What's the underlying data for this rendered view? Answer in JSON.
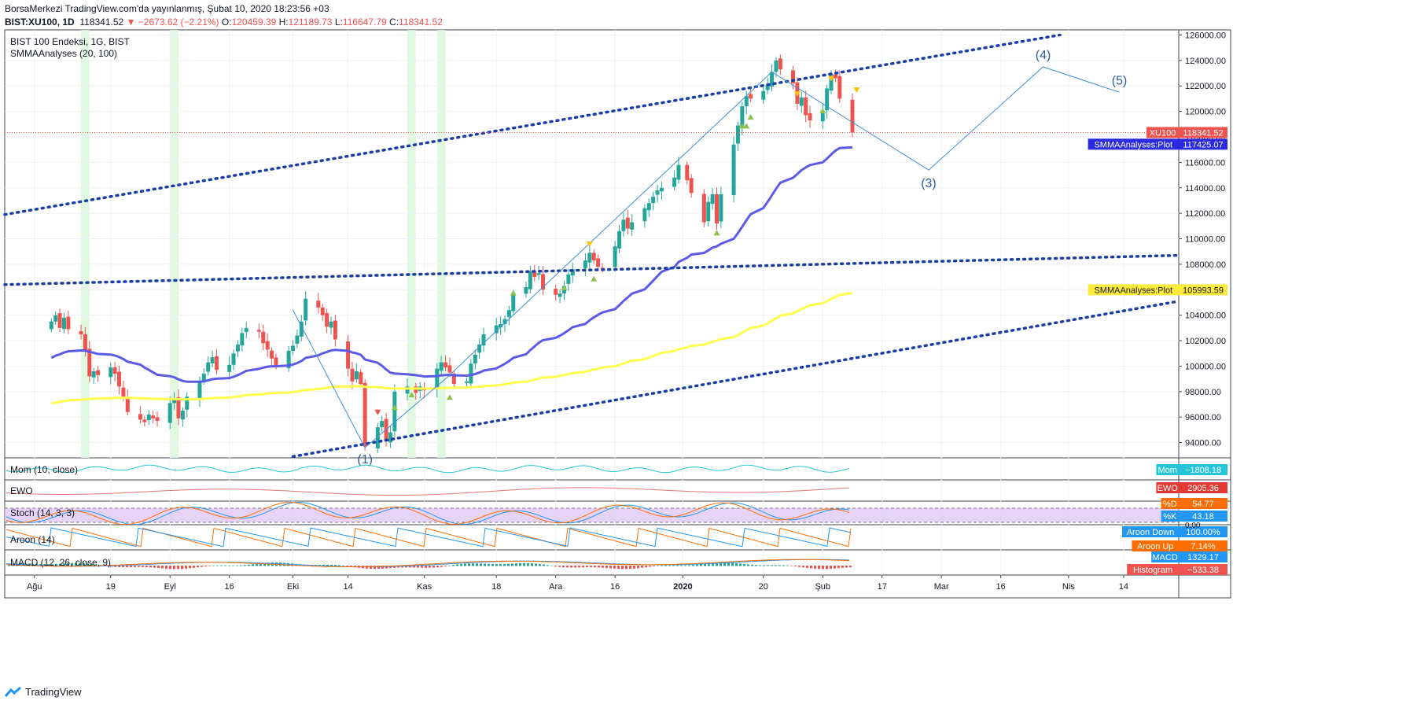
{
  "header": {
    "line1": "BorsaMerkezi TradingView.com'da yayınlanmış, Şubat 10, 2020 18:23:56 +03",
    "symbol": "BIST:XU100, 1D",
    "last": "118341.52",
    "change": "−2673.62 (−2.21%)",
    "o_label": "O:",
    "o_value": "120459.39",
    "h_label": "H:",
    "h_value": "121189.73",
    "l_label": "L:",
    "l_value": "116647.79",
    "c_label": "C:",
    "c_value": "118341.52"
  },
  "legend": {
    "title": "BIST 100 Endeksi, 1G, BIST",
    "indicator": "SMMAAnalyses (20, 100)"
  },
  "panes": {
    "mom": "Mom (10, close)",
    "ewo": "EWO",
    "stoch": "Stoch (14, 3, 3)",
    "aroon": "Aroon (14)",
    "macd": "MACD (12, 26, close, 9)"
  },
  "badges": [
    {
      "text": "XU100",
      "value": "118341.52",
      "color": "#ef5350"
    },
    {
      "text": "SMMAAnalyses:Plot",
      "value": "117425.07",
      "color": "#2a2ae0"
    },
    {
      "text": "SMMAAnalyses:Plot",
      "value": "105993.59",
      "color": "#ffeb3b"
    },
    {
      "text": "Mom",
      "value": "−1808.18",
      "color": "#26c6da"
    },
    {
      "text": "EWO",
      "value": "2905.36",
      "color": "#e53935"
    },
    {
      "text": "%D",
      "value": "54.77",
      "color": "#ff6d00"
    },
    {
      "text": "%K",
      "value": "43.18",
      "color": "#2196f3"
    },
    {
      "text": "Aroon Down",
      "value": "100.00%",
      "color": "#2196f3"
    },
    {
      "text": "Aroon Up",
      "value": "7.14%",
      "color": "#ff6d00"
    },
    {
      "text": "MACD",
      "value": "1329.17",
      "color": "#2196f3"
    },
    {
      "text": "Histogram",
      "value": "−533.38",
      "color": "#ef5350"
    }
  ],
  "stoch_zero": "0.00",
  "wave_labels": [
    "(1)",
    "(3)",
    "(4)",
    "(5)"
  ],
  "colors": {
    "up": "#26a69a",
    "down": "#ef5350",
    "smma_fast": "#5b5be8",
    "smma_slow": "#ffff4d",
    "channel": "#1a3ea8",
    "wave": "#3d8fd6",
    "highlight": "#d9f7d9"
  },
  "chart_data": {
    "type": "candlestick",
    "title": "BIST 100 Endeksi, 1G, BIST",
    "y_ticks": [
      94000,
      96000,
      98000,
      100000,
      102000,
      104000,
      106000,
      108000,
      110000,
      112000,
      114000,
      116000,
      118000,
      120000,
      122000,
      124000,
      126000
    ],
    "y_tick_labels": [
      "94000.00",
      "96000.00",
      "98000.00",
      "100000.00",
      "102000.00",
      "104000.00",
      "106000.00",
      "108000.00",
      "110000.00",
      "112000.00",
      "114000.00",
      "116000.00",
      "118000.00",
      "120000.00",
      "122000.00",
      "124000.00",
      "126000.00"
    ],
    "ylim": [
      92800,
      126400
    ],
    "x_labels": [
      "Ağu",
      "19",
      "Eyl",
      "16",
      "Eki",
      "14",
      "Kas",
      "18",
      "Ara",
      "16",
      "2020",
      "20",
      "Şub",
      "17",
      "Mar",
      "16",
      "Nis",
      "14"
    ],
    "x_label_dates": [
      "2019-08-01",
      "2019-08-19",
      "2019-09-02",
      "2019-09-16",
      "2019-10-01",
      "2019-10-14",
      "2019-11-01",
      "2019-11-18",
      "2019-12-02",
      "2019-12-16",
      "2020-01-01",
      "2020-01-20",
      "2020-02-03",
      "2020-02-17",
      "2020-03-02",
      "2020-03-16",
      "2020-04-01",
      "2020-04-14"
    ],
    "candles_close_approx": [
      [
        "2019-08-05",
        103500
      ],
      [
        "2019-08-06",
        104000
      ],
      [
        "2019-08-07",
        103000
      ],
      [
        "2019-08-08",
        103800
      ],
      [
        "2019-08-09",
        102900
      ],
      [
        "2019-08-12",
        102500
      ],
      [
        "2019-08-13",
        101200
      ],
      [
        "2019-08-14",
        99200
      ],
      [
        "2019-08-15",
        99600
      ],
      [
        "2019-08-16",
        99300
      ],
      [
        "2019-08-19",
        99900
      ],
      [
        "2019-08-20",
        99400
      ],
      [
        "2019-08-21",
        98400
      ],
      [
        "2019-08-22",
        97500
      ],
      [
        "2019-08-23",
        96400
      ],
      [
        "2019-08-26",
        95800
      ],
      [
        "2019-08-27",
        95600
      ],
      [
        "2019-08-28",
        96200
      ],
      [
        "2019-08-29",
        95900
      ],
      [
        "2019-08-30",
        95700
      ],
      [
        "2019-09-02",
        97100
      ],
      [
        "2019-09-03",
        97400
      ],
      [
        "2019-09-04",
        95900
      ],
      [
        "2019-09-05",
        96500
      ],
      [
        "2019-09-06",
        97600
      ],
      [
        "2019-09-09",
        98800
      ],
      [
        "2019-09-10",
        99400
      ],
      [
        "2019-09-11",
        100300
      ],
      [
        "2019-09-12",
        100700
      ],
      [
        "2019-09-13",
        99700
      ],
      [
        "2019-09-16",
        100100
      ],
      [
        "2019-09-17",
        101000
      ],
      [
        "2019-09-18",
        101700
      ],
      [
        "2019-09-19",
        102600
      ],
      [
        "2019-09-20",
        103000
      ],
      [
        "2019-09-23",
        102700
      ],
      [
        "2019-09-24",
        101800
      ],
      [
        "2019-09-25",
        101300
      ],
      [
        "2019-09-26",
        100600
      ],
      [
        "2019-09-27",
        100000
      ],
      [
        "2019-09-30",
        101200
      ],
      [
        "2019-10-01",
        101600
      ],
      [
        "2019-10-02",
        102400
      ],
      [
        "2019-10-03",
        103500
      ],
      [
        "2019-10-04",
        105300
      ],
      [
        "2019-10-07",
        104600
      ],
      [
        "2019-10-08",
        104000
      ],
      [
        "2019-10-09",
        103100
      ],
      [
        "2019-10-10",
        103500
      ],
      [
        "2019-10-11",
        102100
      ],
      [
        "2019-10-14",
        99800
      ],
      [
        "2019-10-15",
        98800
      ],
      [
        "2019-10-16",
        99600
      ],
      [
        "2019-10-17",
        98600
      ],
      [
        "2019-10-18",
        93700
      ],
      [
        "2019-10-21",
        95200
      ],
      [
        "2019-10-22",
        95700
      ],
      [
        "2019-10-23",
        94100
      ],
      [
        "2019-10-24",
        94800
      ],
      [
        "2019-10-25",
        98000
      ],
      [
        "2019-10-28",
        98400
      ],
      [
        "2019-10-30",
        97900
      ],
      [
        "2019-10-31",
        98400
      ],
      [
        "2019-11-01",
        98100
      ],
      [
        "2019-11-04",
        99800
      ],
      [
        "2019-11-05",
        100300
      ],
      [
        "2019-11-06",
        99900
      ],
      [
        "2019-11-07",
        99500
      ],
      [
        "2019-11-08",
        98600
      ],
      [
        "2019-11-11",
        98800
      ],
      [
        "2019-11-12",
        100200
      ],
      [
        "2019-11-13",
        100900
      ],
      [
        "2019-11-14",
        101700
      ],
      [
        "2019-11-15",
        102500
      ],
      [
        "2019-11-18",
        103200
      ],
      [
        "2019-11-19",
        103300
      ],
      [
        "2019-11-20",
        103700
      ],
      [
        "2019-11-21",
        104400
      ],
      [
        "2019-11-22",
        105600
      ],
      [
        "2019-11-25",
        106200
      ],
      [
        "2019-11-26",
        107400
      ],
      [
        "2019-11-27",
        107000
      ],
      [
        "2019-11-28",
        107300
      ],
      [
        "2019-11-29",
        106000
      ],
      [
        "2019-12-02",
        105600
      ],
      [
        "2019-12-03",
        105700
      ],
      [
        "2019-12-04",
        106300
      ],
      [
        "2019-12-05",
        107200
      ],
      [
        "2019-12-06",
        107600
      ],
      [
        "2019-12-09",
        108300
      ],
      [
        "2019-12-10",
        108900
      ],
      [
        "2019-12-11",
        108300
      ],
      [
        "2019-12-12",
        107800
      ],
      [
        "2019-12-13",
        107700
      ],
      [
        "2019-12-16",
        109400
      ],
      [
        "2019-12-17",
        110600
      ],
      [
        "2019-12-18",
        111500
      ],
      [
        "2019-12-19",
        110800
      ],
      [
        "2019-12-20",
        111300
      ],
      [
        "2019-12-23",
        112400
      ],
      [
        "2019-12-24",
        112800
      ],
      [
        "2019-12-25",
        113300
      ],
      [
        "2019-12-26",
        113800
      ],
      [
        "2019-12-27",
        114000
      ],
      [
        "2019-12-30",
        114800
      ],
      [
        "2019-12-31",
        115800
      ],
      [
        "2020-01-02",
        114600
      ],
      [
        "2020-01-03",
        113600
      ],
      [
        "2020-01-06",
        111300
      ],
      [
        "2020-01-07",
        112900
      ],
      [
        "2020-01-08",
        113500
      ],
      [
        "2020-01-09",
        111200
      ],
      [
        "2020-01-10",
        113500
      ],
      [
        "2020-01-13",
        117400
      ],
      [
        "2020-01-14",
        118900
      ],
      [
        "2020-01-15",
        120400
      ],
      [
        "2020-01-16",
        121200
      ],
      [
        "2020-01-17",
        121000
      ],
      [
        "2020-01-20",
        121600
      ],
      [
        "2020-01-21",
        122100
      ],
      [
        "2020-01-22",
        123100
      ],
      [
        "2020-01-23",
        124000
      ],
      [
        "2020-01-24",
        123300
      ],
      [
        "2020-01-27",
        122200
      ],
      [
        "2020-01-28",
        120600
      ],
      [
        "2020-01-29",
        121100
      ],
      [
        "2020-01-30",
        119700
      ],
      [
        "2020-01-31",
        119300
      ],
      [
        "2020-02-03",
        120000
      ],
      [
        "2020-02-04",
        121800
      ],
      [
        "2020-02-05",
        122900
      ],
      [
        "2020-02-06",
        122600
      ],
      [
        "2020-02-07",
        121000
      ],
      [
        "2020-02-10",
        118341.52
      ]
    ],
    "series": [
      {
        "name": "SMMAAnalyses:Plot",
        "period": 20,
        "last_value": 117425.07
      },
      {
        "name": "SMMAAnalyses:Plot",
        "period": 100,
        "last_value": 105993.59
      }
    ],
    "wave_points": [
      {
        "label": "(1)",
        "date": "2019-10-18",
        "value": 93600
      },
      {
        "label": "(3)",
        "date": "2020-02-28",
        "value": 115400
      },
      {
        "label": "(4)",
        "date": "2020-03-26",
        "value": 123500
      },
      {
        "label": "(5)",
        "date": "2020-04-13",
        "value": 121500
      }
    ]
  }
}
